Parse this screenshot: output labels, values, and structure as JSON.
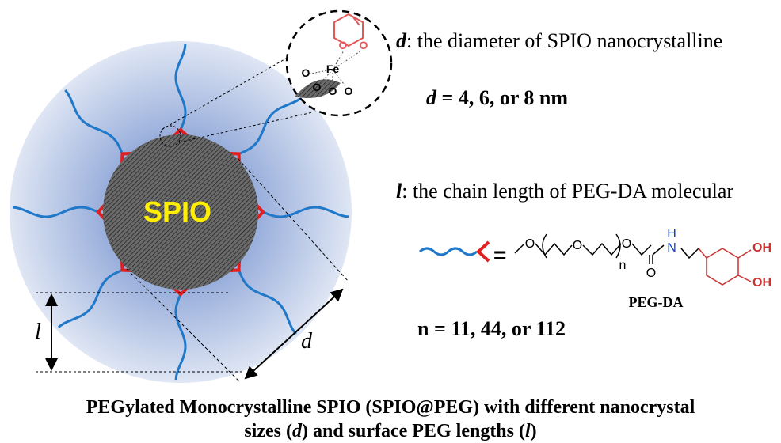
{
  "sphere": {
    "core_label": "SPIO",
    "l_label": "l",
    "d_label": "d"
  },
  "inset": {
    "atoms": [
      "O",
      "O",
      "Fe",
      "O",
      "O",
      "O",
      "O"
    ]
  },
  "legend": {
    "d_symbol": "d",
    "d_text": ": the diameter of SPIO nanocrystalline",
    "d_values_symbol": "d",
    "d_values": " = 4, 6, or 8 nm",
    "l_symbol": "l",
    "l_text": ": the chain length of PEG-DA molecular",
    "n_values": "n = 11, 44, or 112"
  },
  "structure": {
    "equals": "=",
    "atoms": [
      "O",
      "O",
      "n",
      "O",
      "O",
      "N",
      "H",
      "OH",
      "OH"
    ],
    "name": "PEG-DA"
  },
  "caption": {
    "line1": "PEGylated Monocrystalline SPIO (SPIO@PEG) with different nanocrystal",
    "line2": [
      "sizes (",
      "d",
      ") and surface PEG lengths (",
      "l",
      ")"
    ]
  }
}
